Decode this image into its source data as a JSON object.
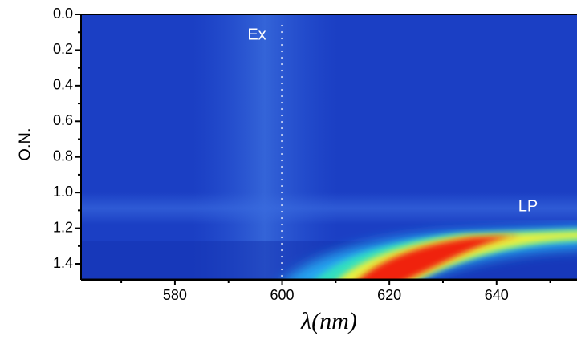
{
  "chart_data": {
    "type": "heatmap",
    "xlabel": "λ(nm)",
    "ylabel": "O.N.",
    "xlim": [
      562.5,
      655
    ],
    "xticks": [
      580,
      600,
      620,
      640
    ],
    "xminorticks": [
      570,
      590,
      610,
      630,
      650
    ],
    "ylim": [
      0,
      1.49
    ],
    "yinverted": true,
    "yticks": [
      {
        "value": 0,
        "label": "0.0"
      },
      {
        "value": 0.2,
        "label": "0.2"
      },
      {
        "value": 0.4,
        "label": "0.4"
      },
      {
        "value": 0.6,
        "label": "0.6"
      },
      {
        "value": 0.8,
        "label": "0.8"
      },
      {
        "value": 1.0,
        "label": "1.0"
      },
      {
        "value": 1.2,
        "label": "1.2"
      },
      {
        "value": 1.4,
        "label": "1.4"
      }
    ],
    "yminorticks": [
      0.1,
      0.3,
      0.5,
      0.7,
      0.9,
      1.1,
      1.3
    ],
    "vline": 600,
    "annotations": [
      {
        "text": "Ex"
      },
      {
        "text": "LP"
      }
    ]
  }
}
